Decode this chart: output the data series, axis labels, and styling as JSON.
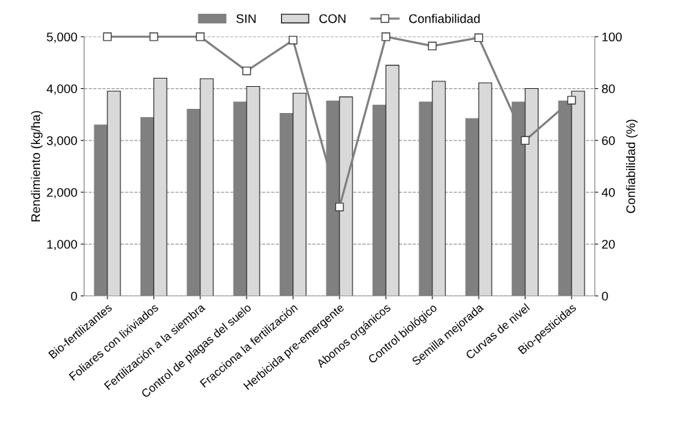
{
  "chart_data": {
    "type": "bar",
    "categories": [
      "Bio-fertilizantes",
      "Foliares con lixiviados",
      "Fertilización a la siembra",
      "Control de plagas del suelo",
      "Fracciona la fertilización",
      "Herbicida pre-emergente",
      "Abonos orgánicos",
      "Control biológico",
      "Semilla mejorada",
      "Curvas de nivel",
      "Bio-pesticidas"
    ],
    "series": [
      {
        "name": "SIN",
        "color": "#808080",
        "values": [
          3300,
          3440,
          3600,
          3740,
          3520,
          3760,
          3680,
          3740,
          3420,
          3740,
          3760
        ]
      },
      {
        "name": "CON",
        "color": "#d9d9d9",
        "values": [
          3950,
          4200,
          4190,
          4040,
          3910,
          3840,
          4450,
          4140,
          4110,
          4000,
          3950
        ]
      },
      {
        "name": "Confiabilidad",
        "type": "line",
        "axis": "y2",
        "color": "#808080",
        "marker": "square",
        "values": [
          100,
          100,
          100,
          86.8,
          98.7,
          34.3,
          100,
          96.4,
          99.6,
          60,
          75.5
        ]
      }
    ],
    "ylabel": "Rendimiento (kg/ha)",
    "y2label": "Confiabilidad (%)",
    "ylim": [
      0,
      5000
    ],
    "yticks": [
      {
        "value": 0,
        "label": "0"
      },
      {
        "value": 1000,
        "label": "1,000"
      },
      {
        "value": 2000,
        "label": "2,000"
      },
      {
        "value": 3000,
        "label": "3,000"
      },
      {
        "value": 4000,
        "label": "4,000"
      },
      {
        "value": 5000,
        "label": "5,000"
      }
    ],
    "y2lim": [
      0,
      100
    ],
    "y2ticks": [
      0,
      20,
      40,
      60,
      80,
      100
    ],
    "grid": "y",
    "legend": "top"
  }
}
